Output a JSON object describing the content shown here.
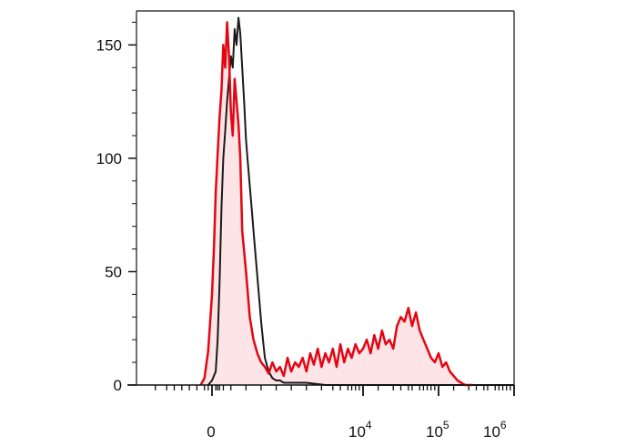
{
  "chart_data": {
    "type": "area",
    "title": "",
    "xlabel": "",
    "ylabel": "",
    "x_scale": "biexponential",
    "ylim": [
      0,
      165
    ],
    "y_ticks": [
      {
        "value": 0,
        "label": "0"
      },
      {
        "value": 50,
        "label": "50"
      },
      {
        "value": 100,
        "label": "100"
      },
      {
        "value": 150,
        "label": "150"
      }
    ],
    "x_ticks": [
      {
        "value": "0",
        "label": "0",
        "sup": ""
      },
      {
        "value": "1e4",
        "label": "10",
        "sup": "4"
      },
      {
        "value": "1e5",
        "label": "10",
        "sup": "5"
      },
      {
        "value": "1e6",
        "label": "10",
        "sup": "6"
      }
    ],
    "grid": false,
    "legend": "none",
    "colors": {
      "control": "#1a1a1a",
      "stained": "#e30613",
      "stained_fill": "#fde4e6",
      "axis": "#111111"
    },
    "series": [
      {
        "style": "line",
        "color": "#1a1a1a",
        "x": [
          0.19,
          0.2,
          0.21,
          0.215,
          0.22,
          0.225,
          0.23,
          0.235,
          0.24,
          0.245,
          0.25,
          0.255,
          0.26,
          0.265,
          0.27,
          0.275,
          0.28,
          0.285,
          0.29,
          0.295,
          0.3,
          0.305,
          0.31,
          0.315,
          0.32,
          0.325,
          0.33,
          0.335,
          0.34,
          0.35,
          0.36,
          0.37,
          0.38,
          0.39,
          0.4,
          0.42,
          0.45,
          0.5,
          0.55,
          0.6,
          0.65,
          0.7,
          0.75,
          0.8,
          0.85,
          0.9,
          0.95,
          1.0
        ],
        "values": [
          0,
          2,
          6,
          20,
          45,
          78,
          100,
          112,
          125,
          135,
          145,
          140,
          157,
          150,
          162,
          155,
          140,
          125,
          108,
          98,
          88,
          78,
          68,
          58,
          48,
          38,
          28,
          20,
          12,
          6,
          3,
          2,
          2,
          1,
          1,
          1,
          1,
          0,
          0,
          0,
          0,
          0,
          0,
          0,
          0,
          0,
          0,
          0
        ]
      },
      {
        "style": "filled-line",
        "color": "#e30613",
        "x": [
          0.17,
          0.18,
          0.19,
          0.2,
          0.205,
          0.21,
          0.215,
          0.22,
          0.225,
          0.23,
          0.235,
          0.24,
          0.245,
          0.25,
          0.255,
          0.26,
          0.265,
          0.27,
          0.275,
          0.28,
          0.29,
          0.3,
          0.31,
          0.32,
          0.33,
          0.34,
          0.35,
          0.36,
          0.37,
          0.38,
          0.39,
          0.4,
          0.41,
          0.42,
          0.43,
          0.44,
          0.45,
          0.46,
          0.47,
          0.48,
          0.49,
          0.5,
          0.51,
          0.52,
          0.53,
          0.54,
          0.55,
          0.56,
          0.57,
          0.58,
          0.59,
          0.6,
          0.61,
          0.62,
          0.63,
          0.64,
          0.65,
          0.66,
          0.67,
          0.68,
          0.69,
          0.7,
          0.71,
          0.72,
          0.73,
          0.74,
          0.75,
          0.76,
          0.77,
          0.78,
          0.79,
          0.8,
          0.81,
          0.82,
          0.83,
          0.84,
          0.85,
          0.86,
          0.87,
          0.88,
          0.89
        ],
        "values": [
          0,
          3,
          15,
          40,
          60,
          85,
          102,
          118,
          130,
          150,
          140,
          160,
          145,
          120,
          110,
          135,
          125,
          115,
          100,
          68,
          50,
          30,
          20,
          14,
          10,
          8,
          5,
          10,
          6,
          8,
          4,
          12,
          6,
          10,
          8,
          12,
          6,
          14,
          9,
          16,
          8,
          14,
          10,
          16,
          8,
          18,
          10,
          16,
          12,
          18,
          14,
          16,
          20,
          14,
          22,
          16,
          24,
          18,
          20,
          16,
          26,
          30,
          28,
          34,
          26,
          32,
          24,
          20,
          16,
          12,
          10,
          14,
          8,
          10,
          6,
          4,
          2,
          1,
          0,
          0,
          0
        ]
      }
    ]
  }
}
